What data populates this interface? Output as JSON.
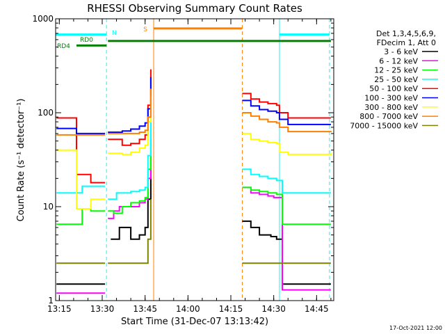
{
  "chart_data": {
    "type": "line",
    "title": "RHESSI Observing Summary Count Rates",
    "xlabel": "Start Time (31-Dec-07 13:13:42)",
    "ylabel": "Count Rate (s⁻¹ detector⁻¹)",
    "y_scale": "log",
    "ylim": [
      1,
      1000
    ],
    "xlim": [
      "13:13:42",
      "14:51:00"
    ],
    "x_ticks": [
      "13:15",
      "13:30",
      "13:45",
      "14:00",
      "14:15",
      "14:30",
      "14:45"
    ],
    "y_ticks": [
      "1",
      "10",
      "100",
      "1000"
    ],
    "timestamp": "17-Oct-2021 12:00",
    "legend": {
      "header": [
        "Det 1,3,4,5,6,9,",
        "FDecim 1, Att 0"
      ],
      "placement": "right"
    },
    "flags": [
      {
        "label": "N",
        "color": "#00ffff"
      },
      {
        "label": "S",
        "color": "#ff8000"
      },
      {
        "label": "RD0",
        "color": "#008000"
      },
      {
        "label": "RD4",
        "color": "#008000"
      }
    ],
    "vlines": [
      {
        "time": "13:13:42",
        "color": "#00ffff",
        "style": "solid"
      },
      {
        "time": "13:31:30",
        "color": "#00ffff",
        "style": "dashed"
      },
      {
        "time": "13:48:00",
        "color": "#ff8000",
        "style": "solid"
      },
      {
        "time": "14:19:00",
        "color": "#ff8000",
        "style": "dashed"
      },
      {
        "time": "14:32:00",
        "color": "#00ffff",
        "style": "solid"
      },
      {
        "time": "14:49:30",
        "color": "#00ffff",
        "style": "dashed"
      }
    ],
    "bars": [
      {
        "name": "N",
        "color": "#00ffff",
        "y": 680,
        "segments": [
          [
            "13:13:42",
            "13:31:30"
          ],
          [
            "14:32:00",
            "14:49:30"
          ]
        ]
      },
      {
        "name": "S",
        "color": "#ff8000",
        "y": 790,
        "segments": [
          [
            "13:48:00",
            "14:19:00"
          ]
        ]
      },
      {
        "name": "RD0",
        "color": "#008000",
        "y": 580,
        "segments": [
          [
            "13:32:00",
            "14:50:00"
          ]
        ]
      },
      {
        "name": "RD4",
        "color": "#008000",
        "y": 520,
        "segments": [
          [
            "13:21:00",
            "13:31:30"
          ]
        ]
      }
    ],
    "series": [
      {
        "name": "3 - 6 keV",
        "color": "#000000",
        "segments": [
          [
            [
              "13:14",
              1.5
            ],
            [
              "13:31",
              1.5
            ]
          ],
          [
            [
              "13:33",
              4.5
            ],
            [
              "13:36",
              6
            ],
            [
              "13:40",
              4.5
            ],
            [
              "13:43",
              5
            ],
            [
              "13:45",
              6
            ],
            [
              "13:46",
              12
            ],
            [
              "13:47",
              35
            ]
          ],
          [
            [
              "14:19",
              7
            ],
            [
              "14:22",
              6
            ],
            [
              "14:25",
              5
            ],
            [
              "14:29",
              4.8
            ],
            [
              "14:31",
              4.5
            ],
            [
              "14:33",
              1.5
            ],
            [
              "14:50",
              1.5
            ]
          ]
        ]
      },
      {
        "name": "6 - 12 keV",
        "color": "#ff00ff",
        "segments": [
          [
            [
              "13:14",
              1.2
            ],
            [
              "13:31",
              1.2
            ]
          ],
          [
            [
              "13:32",
              7.5
            ],
            [
              "13:34",
              9
            ],
            [
              "13:36",
              10
            ],
            [
              "13:40",
              10
            ],
            [
              "13:43",
              11
            ],
            [
              "13:45",
              12
            ],
            [
              "13:46",
              20
            ],
            [
              "13:47",
              55
            ]
          ],
          [
            [
              "14:19",
              16
            ],
            [
              "14:22",
              14
            ],
            [
              "14:25",
              13.5
            ],
            [
              "14:28",
              13
            ],
            [
              "14:30",
              12.5
            ],
            [
              "14:33",
              1.3
            ],
            [
              "14:50",
              1.3
            ]
          ]
        ]
      },
      {
        "name": "12 - 25 keV",
        "color": "#00ff00",
        "segments": [
          [
            [
              "13:14",
              6.5
            ],
            [
              "13:22",
              6.5
            ],
            [
              "13:23",
              9.5
            ],
            [
              "13:25",
              9.5
            ],
            [
              "13:26",
              9
            ],
            [
              "13:31",
              9
            ]
          ],
          [
            [
              "13:32",
              9
            ],
            [
              "13:34",
              8.5
            ],
            [
              "13:37",
              10
            ],
            [
              "13:40",
              11
            ],
            [
              "13:43",
              11.5
            ],
            [
              "13:45",
              12.5
            ],
            [
              "13:46",
              25
            ],
            [
              "13:47",
              90
            ]
          ],
          [
            [
              "14:19",
              16
            ],
            [
              "14:22",
              15
            ],
            [
              "14:25",
              14.5
            ],
            [
              "14:28",
              14
            ],
            [
              "14:31",
              13.5
            ],
            [
              "14:33",
              6.5
            ],
            [
              "14:50",
              6.5
            ]
          ]
        ]
      },
      {
        "name": "25 - 50 keV",
        "color": "#00ffff",
        "segments": [
          [
            [
              "13:14",
              14
            ],
            [
              "13:22",
              14
            ],
            [
              "13:23",
              16.5
            ],
            [
              "13:31",
              16.5
            ]
          ],
          [
            [
              "13:32",
              12
            ],
            [
              "13:35",
              14
            ],
            [
              "13:40",
              14.5
            ],
            [
              "13:43",
              15
            ],
            [
              "13:45",
              16
            ],
            [
              "13:46",
              35
            ],
            [
              "13:47",
              120
            ]
          ],
          [
            [
              "14:19",
              25
            ],
            [
              "14:22",
              22
            ],
            [
              "14:25",
              21
            ],
            [
              "14:28",
              20
            ],
            [
              "14:31",
              19
            ],
            [
              "14:33",
              14
            ],
            [
              "14:50",
              14
            ]
          ]
        ]
      },
      {
        "name": "50 - 100 keV",
        "color": "#ff0000",
        "segments": [
          [
            [
              "13:14",
              88
            ],
            [
              "13:20",
              88
            ],
            [
              "13:21",
              22
            ],
            [
              "13:25",
              22
            ],
            [
              "13:26",
              18
            ],
            [
              "13:31",
              18
            ]
          ],
          [
            [
              "13:32",
              52
            ],
            [
              "13:36",
              52
            ],
            [
              "13:37",
              45
            ],
            [
              "13:40",
              47
            ],
            [
              "13:43",
              52
            ],
            [
              "13:45",
              58
            ],
            [
              "13:46",
              120
            ],
            [
              "13:47",
              290
            ]
          ],
          [
            [
              "14:19",
              160
            ],
            [
              "14:22",
              140
            ],
            [
              "14:25",
              130
            ],
            [
              "14:28",
              125
            ],
            [
              "14:31",
              120
            ],
            [
              "14:32",
              100
            ],
            [
              "14:35",
              88
            ],
            [
              "14:50",
              88
            ]
          ]
        ]
      },
      {
        "name": "100 - 300 keV",
        "color": "#0000ff",
        "segments": [
          [
            [
              "13:14",
              68
            ],
            [
              "13:20",
              68
            ],
            [
              "13:21",
              60
            ],
            [
              "13:31",
              60
            ]
          ],
          [
            [
              "13:32",
              62
            ],
            [
              "13:36",
              62
            ],
            [
              "13:37",
              64
            ],
            [
              "13:40",
              67
            ],
            [
              "13:43",
              72
            ],
            [
              "13:45",
              78
            ],
            [
              "13:46",
              110
            ],
            [
              "13:47",
              240
            ]
          ],
          [
            [
              "14:19",
              135
            ],
            [
              "14:22",
              118
            ],
            [
              "14:25",
              108
            ],
            [
              "14:28",
              104
            ],
            [
              "14:31",
              100
            ],
            [
              "14:32",
              85
            ],
            [
              "14:35",
              75
            ],
            [
              "14:50",
              75
            ]
          ]
        ]
      },
      {
        "name": "300 - 800 keV",
        "color": "#ffff00",
        "segments": [
          [
            [
              "13:14",
              40
            ],
            [
              "13:20",
              40
            ],
            [
              "13:21",
              9.5
            ],
            [
              "13:25",
              9.5
            ],
            [
              "13:26",
              12
            ],
            [
              "13:31",
              12
            ]
          ],
          [
            [
              "13:32",
              37
            ],
            [
              "13:36",
              37
            ],
            [
              "13:37",
              36
            ],
            [
              "13:40",
              38
            ],
            [
              "13:43",
              42
            ],
            [
              "13:45",
              45
            ],
            [
              "13:46",
              80
            ],
            [
              "13:47",
              150
            ]
          ],
          [
            [
              "14:19",
              60
            ],
            [
              "14:22",
              52
            ],
            [
              "14:25",
              50
            ],
            [
              "14:28",
              48
            ],
            [
              "14:31",
              47
            ],
            [
              "14:32",
              38
            ],
            [
              "14:35",
              36
            ],
            [
              "14:50",
              37
            ]
          ]
        ]
      },
      {
        "name": "800 - 7000 keV",
        "color": "#ff8000",
        "segments": [
          [
            [
              "13:14",
              58
            ],
            [
              "13:31",
              58
            ]
          ],
          [
            [
              "13:32",
              60
            ],
            [
              "13:36",
              60
            ],
            [
              "13:40",
              60
            ],
            [
              "13:43",
              62
            ],
            [
              "13:45",
              65
            ],
            [
              "13:46",
              90
            ],
            [
              "13:47",
              180
            ]
          ],
          [
            [
              "14:19",
              100
            ],
            [
              "14:22",
              92
            ],
            [
              "14:25",
              85
            ],
            [
              "14:28",
              80
            ],
            [
              "14:31",
              78
            ],
            [
              "14:32",
              70
            ],
            [
              "14:35",
              63
            ],
            [
              "14:50",
              64
            ]
          ]
        ]
      },
      {
        "name": "7000 - 15000 keV",
        "color": "#808000",
        "segments": [
          [
            [
              "13:14",
              2.5
            ],
            [
              "13:31",
              2.5
            ]
          ],
          [
            [
              "13:32",
              2.5
            ],
            [
              "13:45",
              2.5
            ],
            [
              "13:46",
              4.5
            ],
            [
              "13:47",
              12
            ]
          ],
          [
            [
              "14:19",
              2.5
            ],
            [
              "14:50",
              2.5
            ]
          ]
        ]
      }
    ]
  }
}
